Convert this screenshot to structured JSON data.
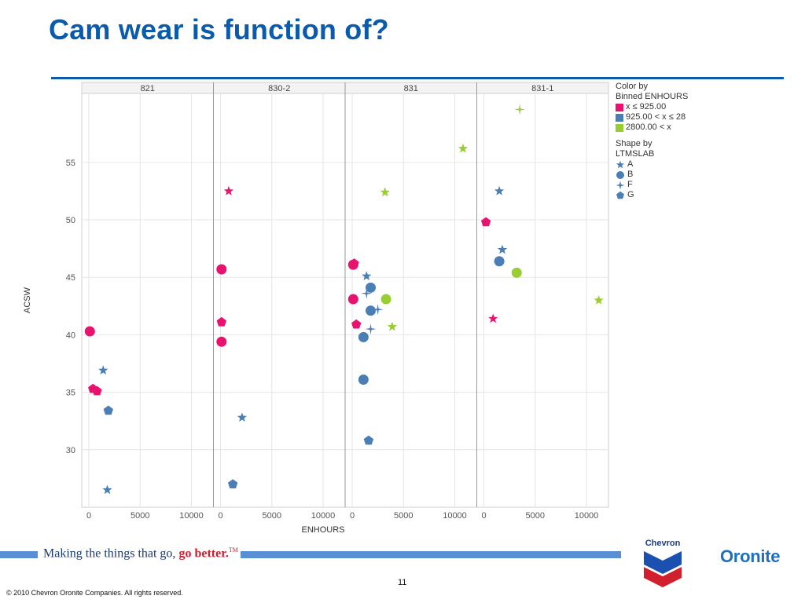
{
  "slide": {
    "title": "Cam wear is function of?",
    "tagline_main": "Making the things that go, ",
    "tagline_accent": "go better.",
    "tagline_tm": "TM",
    "brand_chevron": "Chevron",
    "brand_oronite": "Oronite",
    "page_number": "11",
    "copyright": "© 2010 Chevron Oronite Companies. All rights reserved."
  },
  "legend": {
    "color_title_1": "Color by",
    "color_title_2": "Binned ENHOURS",
    "color_items": [
      {
        "label": "x ≤ 925.00",
        "color": "#e8126f"
      },
      {
        "label": "925.00 < x ≤ 28",
        "color": "#4a7fb5"
      },
      {
        "label": "2800.00 < x",
        "color": "#9acd32"
      }
    ],
    "shape_title_1": "Shape by",
    "shape_title_2": "LTMSLAB",
    "shape_items": [
      {
        "label": "A",
        "shape": "star"
      },
      {
        "label": "B",
        "shape": "circle"
      },
      {
        "label": "F",
        "shape": "cross-star"
      },
      {
        "label": "G",
        "shape": "pentagon"
      }
    ]
  },
  "chart_data": {
    "type": "scatter",
    "title": "",
    "xlabel": "ENHOURS",
    "ylabel": "ACSW",
    "xlim": [
      -600,
      12500
    ],
    "ylim": [
      25,
      61
    ],
    "xticks": [
      0,
      5000,
      10000
    ],
    "xtick_labels": [
      "0",
      "5000",
      "10000"
    ],
    "yticks": [
      30,
      35,
      40,
      45,
      50,
      55
    ],
    "ytick_labels": [
      "30",
      "35",
      "40",
      "45",
      "50",
      "55"
    ],
    "grid": true,
    "panels": [
      {
        "name": "821",
        "points": [
          {
            "x": 100,
            "y": 40.3,
            "shape": "circle",
            "bin": 0
          },
          {
            "x": 1400,
            "y": 36.9,
            "shape": "star",
            "bin": 1
          },
          {
            "x": 400,
            "y": 35.3,
            "shape": "pentagon",
            "bin": 0
          },
          {
            "x": 800,
            "y": 35.1,
            "shape": "pentagon",
            "bin": 0
          },
          {
            "x": 1900,
            "y": 33.4,
            "shape": "pentagon",
            "bin": 1
          },
          {
            "x": 1800,
            "y": 26.5,
            "shape": "star",
            "bin": 1
          }
        ]
      },
      {
        "name": "830-2",
        "points": [
          {
            "x": 800,
            "y": 52.5,
            "shape": "star",
            "bin": 0
          },
          {
            "x": 100,
            "y": 45.7,
            "shape": "circle",
            "bin": 0
          },
          {
            "x": 100,
            "y": 41.1,
            "shape": "pentagon",
            "bin": 0
          },
          {
            "x": 100,
            "y": 39.4,
            "shape": "circle",
            "bin": 0
          },
          {
            "x": 2100,
            "y": 32.8,
            "shape": "star",
            "bin": 1
          },
          {
            "x": 1200,
            "y": 27.0,
            "shape": "pentagon",
            "bin": 1
          }
        ]
      },
      {
        "name": "831",
        "points": [
          {
            "x": 10800,
            "y": 56.2,
            "shape": "star",
            "bin": 2
          },
          {
            "x": 3200,
            "y": 52.4,
            "shape": "star",
            "bin": 2
          },
          {
            "x": 200,
            "y": 46.2,
            "shape": "pentagon",
            "bin": 0
          },
          {
            "x": 100,
            "y": 46.1,
            "shape": "circle",
            "bin": 0
          },
          {
            "x": 1400,
            "y": 45.1,
            "shape": "star",
            "bin": 1
          },
          {
            "x": 1800,
            "y": 44.1,
            "shape": "circle",
            "bin": 1
          },
          {
            "x": 1400,
            "y": 43.6,
            "shape": "cross-star",
            "bin": 1
          },
          {
            "x": 100,
            "y": 43.1,
            "shape": "circle",
            "bin": 0
          },
          {
            "x": 3300,
            "y": 43.1,
            "shape": "circle",
            "bin": 2
          },
          {
            "x": 2500,
            "y": 42.2,
            "shape": "cross-star",
            "bin": 1
          },
          {
            "x": 1800,
            "y": 42.1,
            "shape": "circle",
            "bin": 1
          },
          {
            "x": 400,
            "y": 40.9,
            "shape": "pentagon",
            "bin": 0
          },
          {
            "x": 3900,
            "y": 40.7,
            "shape": "star",
            "bin": 2
          },
          {
            "x": 1800,
            "y": 40.5,
            "shape": "cross-star",
            "bin": 1
          },
          {
            "x": 1100,
            "y": 39.8,
            "shape": "circle",
            "bin": 1
          },
          {
            "x": 1100,
            "y": 36.1,
            "shape": "circle",
            "bin": 1
          },
          {
            "x": 1600,
            "y": 30.8,
            "shape": "pentagon",
            "bin": 1
          }
        ]
      },
      {
        "name": "831-1",
        "points": [
          {
            "x": 3500,
            "y": 59.6,
            "shape": "cross-star",
            "bin": 2
          },
          {
            "x": 1500,
            "y": 52.5,
            "shape": "star",
            "bin": 1
          },
          {
            "x": 200,
            "y": 49.8,
            "shape": "pentagon",
            "bin": 0
          },
          {
            "x": 1800,
            "y": 47.4,
            "shape": "star",
            "bin": 1
          },
          {
            "x": 1500,
            "y": 46.4,
            "shape": "circle",
            "bin": 1
          },
          {
            "x": 3200,
            "y": 45.4,
            "shape": "circle",
            "bin": 2
          },
          {
            "x": 11200,
            "y": 43.0,
            "shape": "star",
            "bin": 2
          },
          {
            "x": 900,
            "y": 41.4,
            "shape": "star",
            "bin": 0
          }
        ]
      }
    ]
  }
}
